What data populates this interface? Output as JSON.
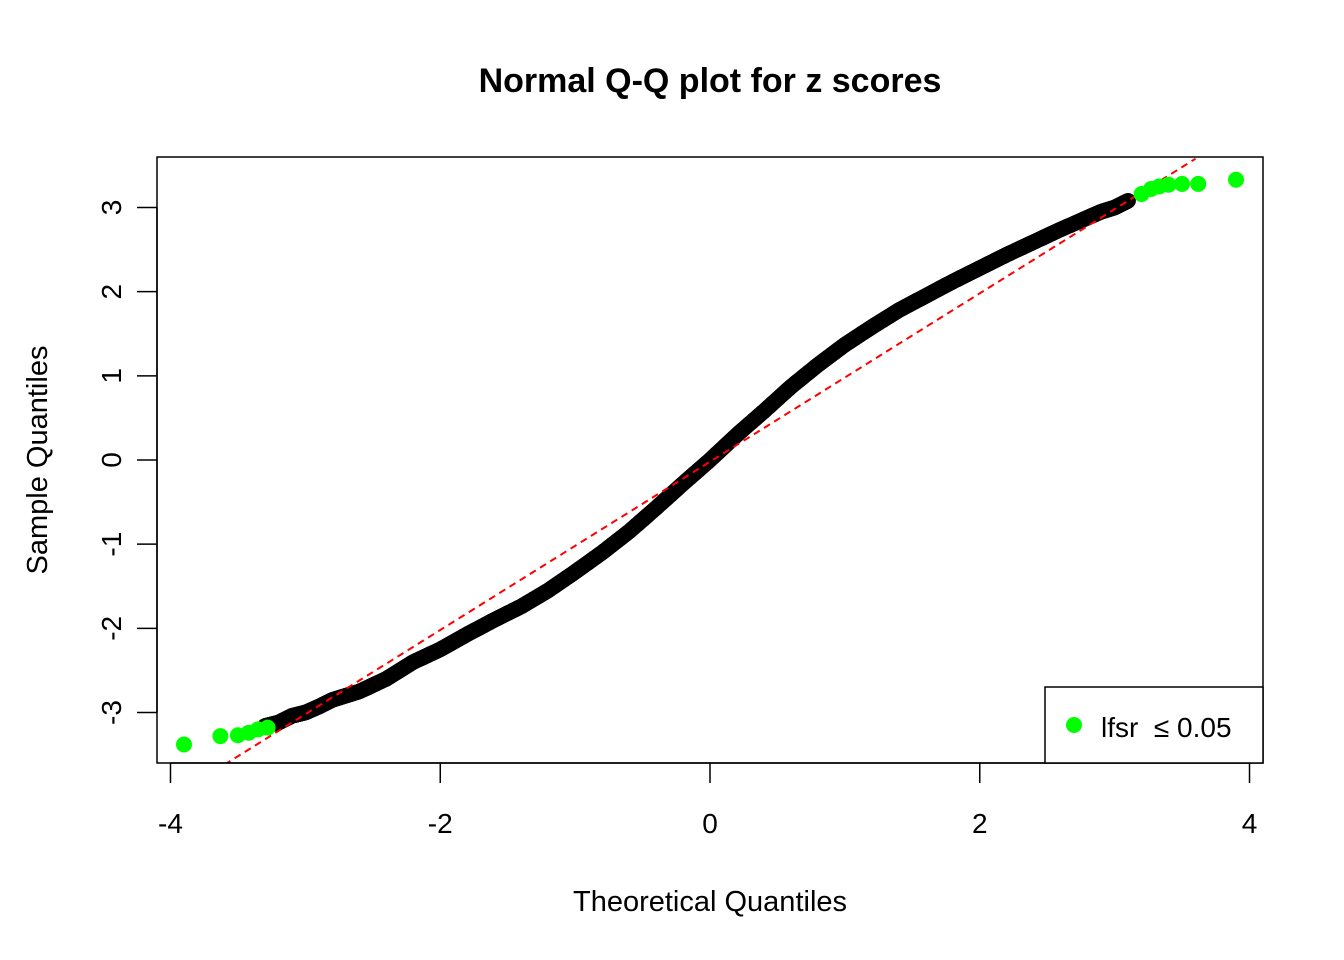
{
  "chart_data": {
    "type": "scatter",
    "title": "Normal Q-Q plot for z scores",
    "xlabel": "Theoretical Quantiles",
    "ylabel": "Sample Quantiles",
    "xlim": [
      -4.1,
      4.1
    ],
    "ylim": [
      -3.6,
      3.6
    ],
    "x_ticks": [
      -4,
      -2,
      0,
      2,
      4
    ],
    "y_ticks": [
      -3,
      -2,
      -1,
      0,
      1,
      2,
      3
    ],
    "x_tick_labels": [
      "-4",
      "-2",
      "0",
      "2",
      "4"
    ],
    "y_tick_labels": [
      "-3",
      "-2",
      "-1",
      "0",
      "1",
      "2",
      "3"
    ],
    "grid": false,
    "legend": {
      "position": "bottom-right",
      "entries": [
        {
          "label": "lfsr  ≤ 0.05",
          "color": "#00ff00",
          "marker": "filled-circle"
        }
      ]
    },
    "reference_line": {
      "style": "dashed",
      "color": "#ff0000",
      "points": [
        [
          -3.6,
          -3.62
        ],
        [
          3.6,
          3.58
        ]
      ]
    },
    "series": [
      {
        "marker": "open-circle",
        "color": "#000000",
        "points": [
          [
            -3.3,
            -3.16
          ],
          [
            -3.2,
            -3.12
          ],
          [
            -3.1,
            -3.04
          ],
          [
            -3.0,
            -3.0
          ],
          [
            -2.9,
            -2.93
          ],
          [
            -2.8,
            -2.85
          ],
          [
            -2.6,
            -2.75
          ],
          [
            -2.4,
            -2.6
          ],
          [
            -2.2,
            -2.4
          ],
          [
            -2.0,
            -2.25
          ],
          [
            -1.8,
            -2.07
          ],
          [
            -1.6,
            -1.9
          ],
          [
            -1.4,
            -1.74
          ],
          [
            -1.2,
            -1.55
          ],
          [
            -1.0,
            -1.33
          ],
          [
            -0.8,
            -1.1
          ],
          [
            -0.6,
            -0.85
          ],
          [
            -0.4,
            -0.57
          ],
          [
            -0.2,
            -0.28
          ],
          [
            0.0,
            0.0
          ],
          [
            0.2,
            0.3
          ],
          [
            0.4,
            0.58
          ],
          [
            0.6,
            0.87
          ],
          [
            0.8,
            1.13
          ],
          [
            1.0,
            1.37
          ],
          [
            1.2,
            1.58
          ],
          [
            1.4,
            1.78
          ],
          [
            1.6,
            1.95
          ],
          [
            1.8,
            2.12
          ],
          [
            2.0,
            2.28
          ],
          [
            2.2,
            2.44
          ],
          [
            2.4,
            2.59
          ],
          [
            2.6,
            2.74
          ],
          [
            2.8,
            2.88
          ],
          [
            2.9,
            2.95
          ],
          [
            3.0,
            3.0
          ],
          [
            3.1,
            3.08
          ]
        ]
      },
      {
        "name": "lfsr  ≤ 0.05",
        "marker": "filled-circle",
        "color": "#00ff00",
        "points": [
          [
            -3.9,
            -3.38
          ],
          [
            -3.63,
            -3.28
          ],
          [
            -3.5,
            -3.27
          ],
          [
            -3.42,
            -3.24
          ],
          [
            -3.35,
            -3.2
          ],
          [
            -3.28,
            -3.18
          ],
          [
            3.2,
            3.16
          ],
          [
            3.27,
            3.22
          ],
          [
            3.33,
            3.25
          ],
          [
            3.4,
            3.27
          ],
          [
            3.5,
            3.28
          ],
          [
            3.62,
            3.28
          ],
          [
            3.9,
            3.33
          ]
        ]
      }
    ]
  }
}
